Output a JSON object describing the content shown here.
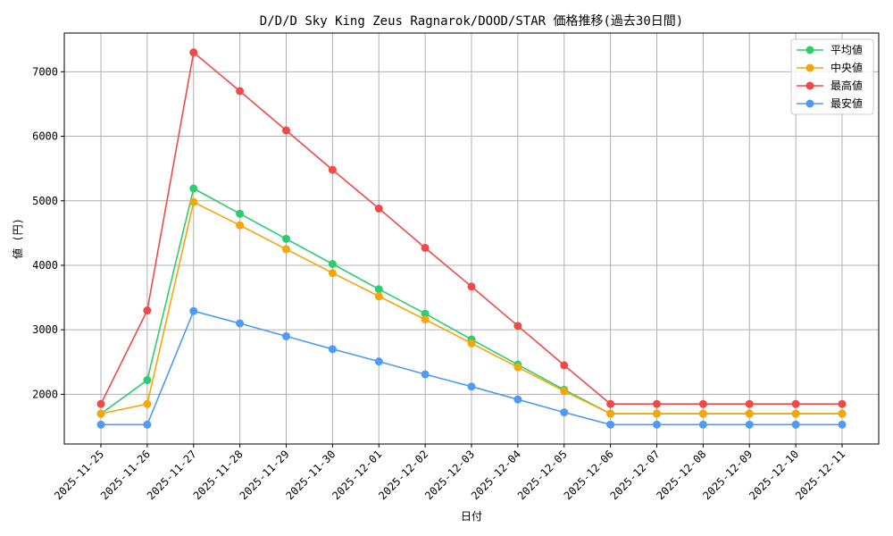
{
  "chart_data": {
    "type": "line",
    "title": "D/D/D Sky King Zeus Ragnarok/DOOD/STAR 価格推移(過去30日間)",
    "xlabel": "日付",
    "ylabel": "値 (円)",
    "categories": [
      "2025-11-25",
      "2025-11-26",
      "2025-11-27",
      "2025-11-28",
      "2025-11-29",
      "2025-11-30",
      "2025-12-01",
      "2025-12-02",
      "2025-12-03",
      "2025-12-04",
      "2025-12-05",
      "2025-12-06",
      "2025-12-07",
      "2025-12-08",
      "2025-12-09",
      "2025-12-10",
      "2025-12-11"
    ],
    "ylim": [
      1230,
      7600
    ],
    "yticks": [
      2000,
      3000,
      4000,
      5000,
      6000,
      7000
    ],
    "grid": true,
    "legend_position": "top-right",
    "series": [
      {
        "name": "平均値",
        "color": "#2ecc71",
        "values": [
          1700,
          2220,
          5190,
          4800,
          4410,
          4020,
          3630,
          3250,
          2850,
          2460,
          2070,
          1700,
          1700,
          1700,
          1700,
          1700,
          1700
        ]
      },
      {
        "name": "中央値",
        "color": "#f5a60a",
        "values": [
          1700,
          1850,
          4980,
          4620,
          4250,
          3880,
          3520,
          3160,
          2790,
          2420,
          2050,
          1700,
          1700,
          1700,
          1700,
          1700,
          1700
        ]
      },
      {
        "name": "最高値",
        "color": "#ef4a4a",
        "values": [
          1850,
          3300,
          7300,
          6700,
          6090,
          5480,
          4880,
          4270,
          3670,
          3060,
          2450,
          1850,
          1850,
          1850,
          1850,
          1850,
          1850
        ]
      },
      {
        "name": "最安値",
        "color": "#4f9af5",
        "values": [
          1530,
          1530,
          3290,
          3100,
          2900,
          2700,
          2510,
          2310,
          2120,
          1920,
          1720,
          1530,
          1530,
          1530,
          1530,
          1530,
          1530
        ]
      }
    ]
  }
}
